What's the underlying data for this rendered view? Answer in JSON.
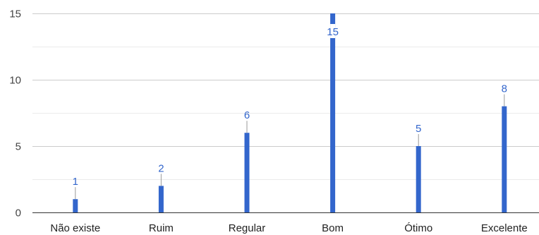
{
  "chart_data": {
    "type": "bar",
    "categories": [
      "Não existe",
      "Ruim",
      "Regular",
      "Bom",
      "Ótimo",
      "Excelente"
    ],
    "values": [
      1,
      2,
      6,
      15,
      5,
      8
    ],
    "data_labels": [
      "1",
      "2",
      "6",
      "15",
      "5",
      "8"
    ],
    "ylim": [
      0,
      15
    ],
    "y_ticks": [
      0,
      5,
      10,
      15
    ],
    "y_tick_labels": [
      "0",
      "5",
      "10",
      "15"
    ],
    "grid": true,
    "legend": "none",
    "title": "",
    "xlabel": "",
    "ylabel": ""
  },
  "colors": {
    "bar": "#3366cc",
    "data_label": "#3366cc",
    "grid_major": "#cccccc",
    "grid_minor": "#ebebeb",
    "axis_baseline": "#333333",
    "leader_line": "#999999"
  }
}
